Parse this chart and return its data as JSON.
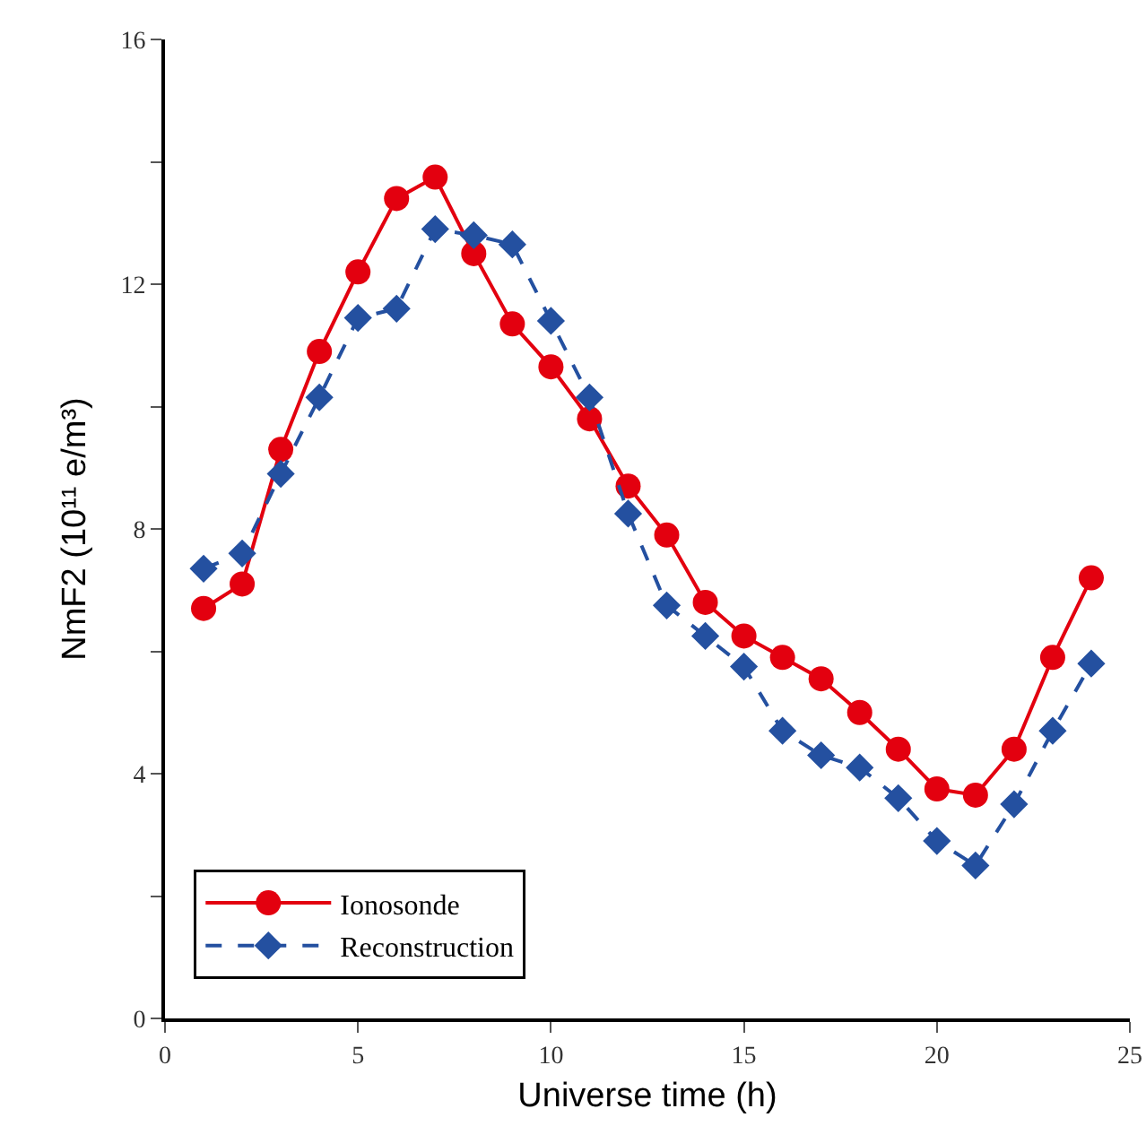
{
  "chart_data": {
    "type": "line",
    "xlabel": "Universe time (h)",
    "ylabel": "NmF2 (10¹¹ e/m³)",
    "x": [
      1,
      2,
      3,
      4,
      5,
      6,
      7,
      8,
      9,
      10,
      11,
      12,
      13,
      14,
      15,
      16,
      17,
      18,
      19,
      20,
      21,
      22,
      23,
      24
    ],
    "series": [
      {
        "name": "Ionosonde",
        "color": "#e3000f",
        "marker": "circle",
        "line_style": "solid",
        "values": [
          6.7,
          7.1,
          9.3,
          10.9,
          12.2,
          13.4,
          13.75,
          12.5,
          11.35,
          10.65,
          9.8,
          8.7,
          7.9,
          6.8,
          6.25,
          5.9,
          5.55,
          5.0,
          4.4,
          3.75,
          3.65,
          4.4,
          5.9,
          7.2
        ]
      },
      {
        "name": "Reconstruction",
        "color": "#2450a0",
        "marker": "diamond",
        "line_style": "dashed",
        "values": [
          7.35,
          7.6,
          8.9,
          10.15,
          11.45,
          11.6,
          12.9,
          12.8,
          12.65,
          11.4,
          10.15,
          8.25,
          6.75,
          6.25,
          5.75,
          4.7,
          4.3,
          4.1,
          3.6,
          2.9,
          2.5,
          3.5,
          4.7,
          5.8
        ]
      }
    ],
    "xlim": [
      0,
      25
    ],
    "xticks": [
      0,
      5,
      10,
      15,
      20,
      25
    ],
    "ylim": [
      0,
      16
    ],
    "yticks": [
      0,
      {
        "value": 2,
        "label": null
      },
      4,
      {
        "value": 6,
        "label": null
      },
      8,
      {
        "value": 10,
        "label": null
      },
      12,
      {
        "value": 14,
        "label": null
      },
      16
    ],
    "grid": false,
    "legend": "bottom left"
  }
}
